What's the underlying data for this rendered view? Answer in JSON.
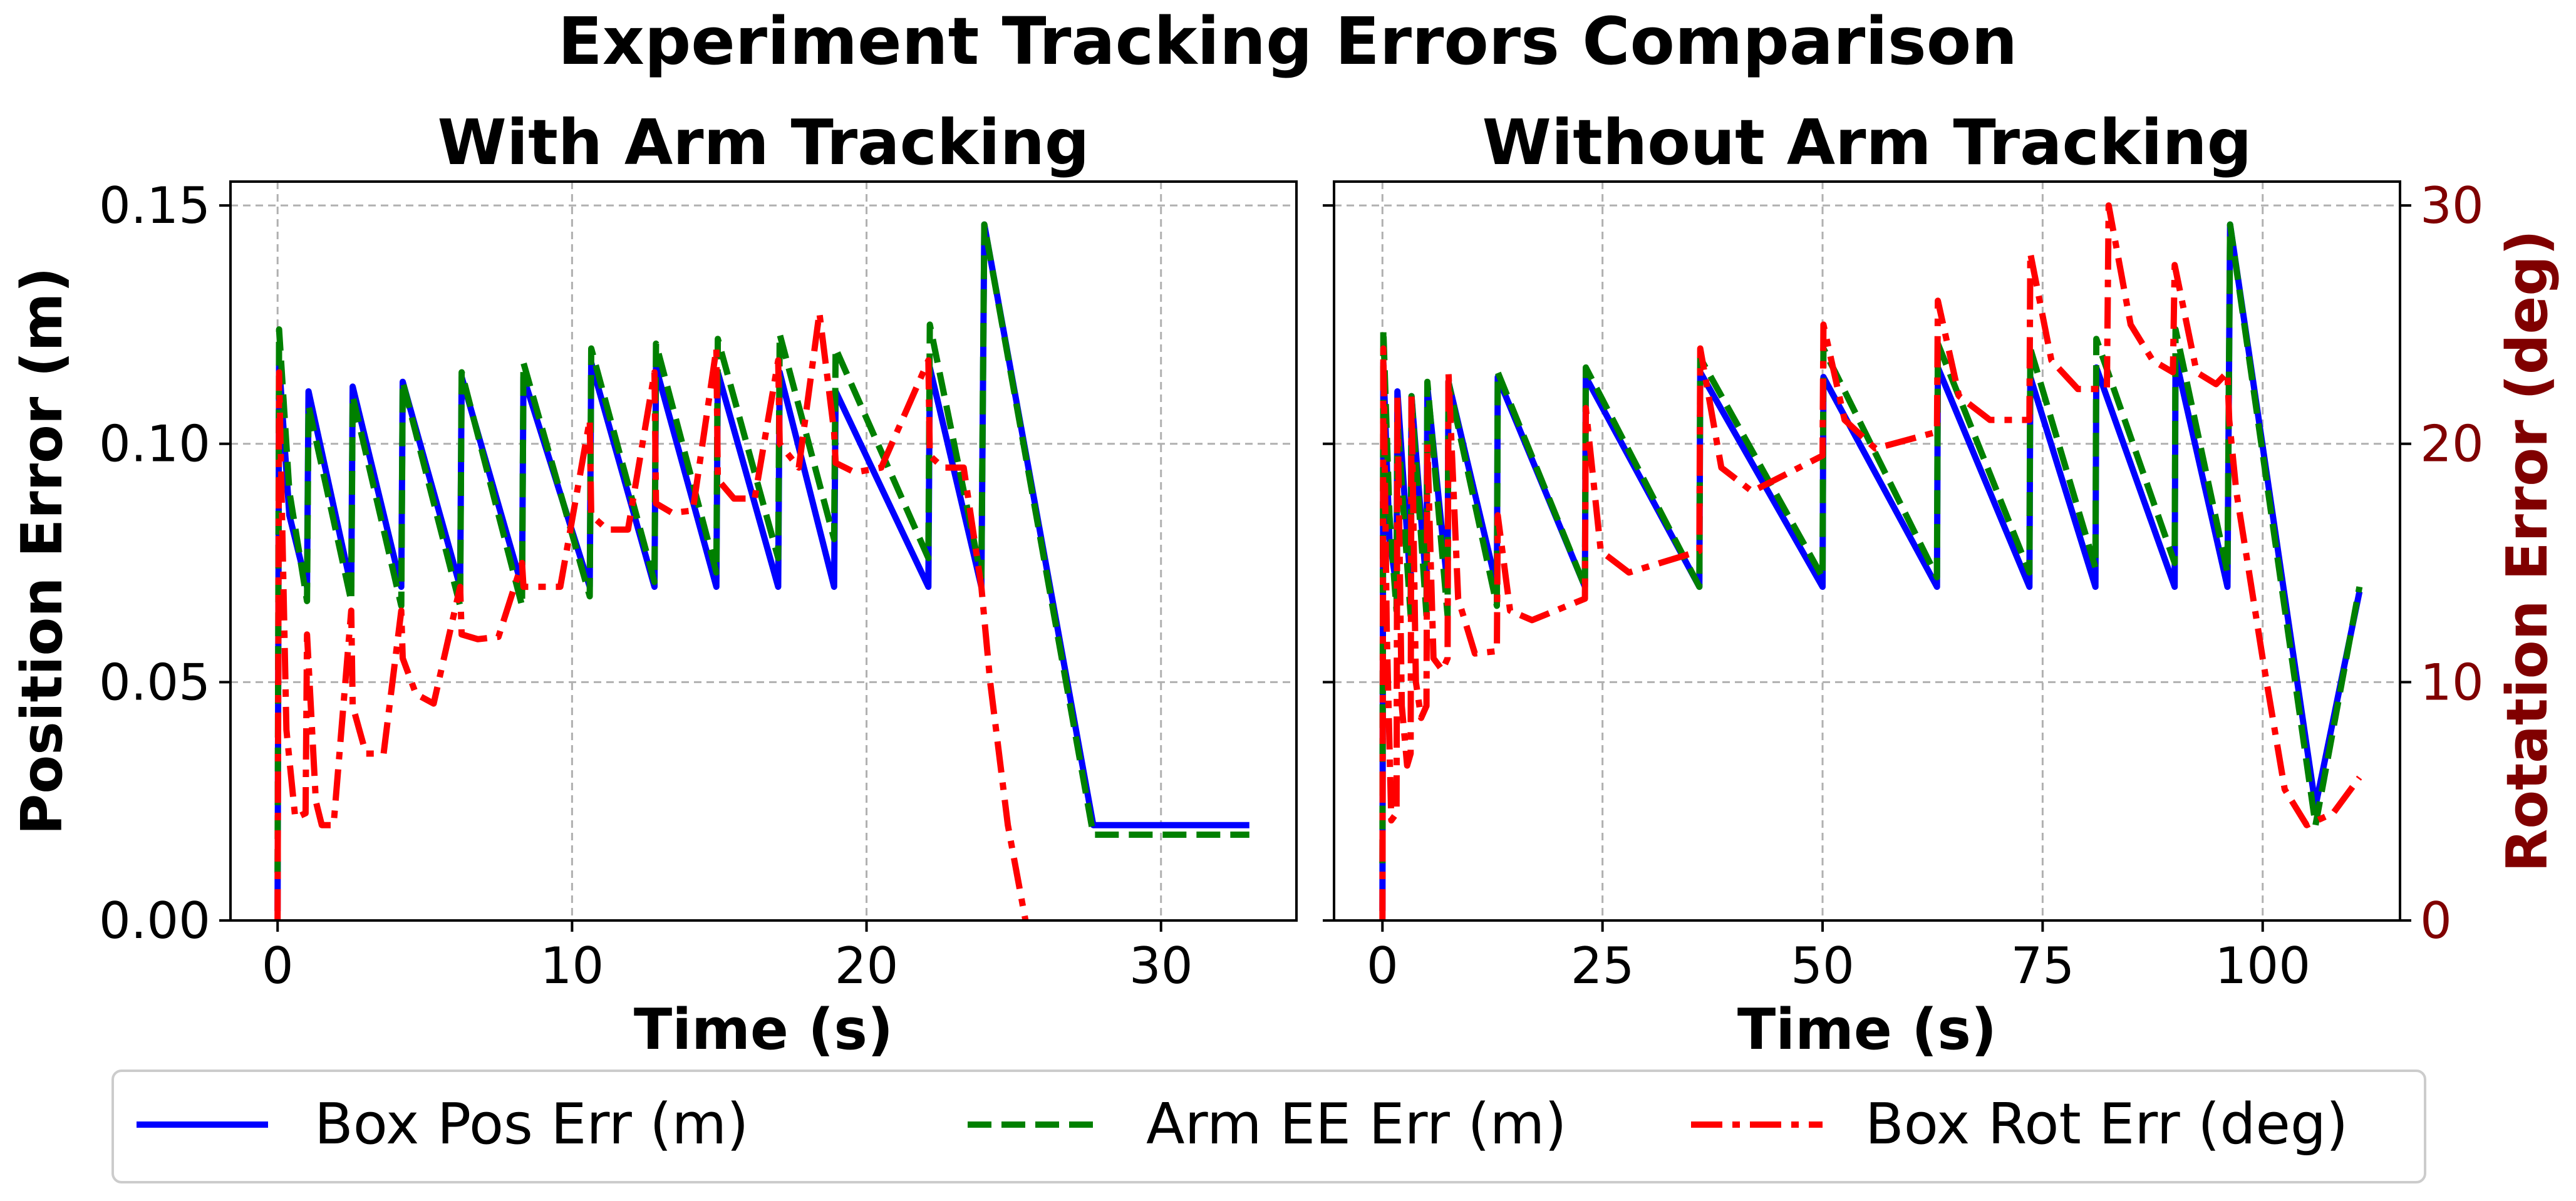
{
  "suptitle": "Experiment Tracking Errors Comparison",
  "colors": {
    "pos": "#0000ff",
    "ee": "#008000",
    "rot": "#ff0000",
    "rot_axis": "#800000",
    "grid": "#b0b0b0",
    "legend_border": "#cccccc"
  },
  "legend": [
    {
      "label": "Box Pos Err (m)",
      "color": "#0000ff",
      "style": "solid"
    },
    {
      "label": "Arm EE Err (m)",
      "color": "#008000",
      "style": "dashed"
    },
    {
      "label": "Box Rot Err (deg)",
      "color": "#ff0000",
      "style": "dashdot"
    }
  ],
  "chart_data": [
    {
      "type": "line",
      "title": "With Arm Tracking",
      "xlabel": "Time (s)",
      "ylabel": "Position Error (m)",
      "xlim": [
        -1.6,
        34.6
      ],
      "ylim": [
        0,
        0.155
      ],
      "xticks": [
        0,
        10,
        20,
        30
      ],
      "xtick_labels": [
        "0",
        "10",
        "20",
        "30"
      ],
      "yticks": [
        0,
        0.05,
        0.1,
        0.15
      ],
      "ytick_labels": [
        "0.00",
        "0.05",
        "0.10",
        "0.15"
      ],
      "y2lim": [
        0,
        31
      ],
      "grid": true,
      "series": [
        {
          "name": "Box Pos Err (m)",
          "axis": "left",
          "x": [
            0,
            0.05,
            0.4,
            1.0,
            1.05,
            2.5,
            2.55,
            4.2,
            4.25,
            6.2,
            6.25,
            8.3,
            8.35,
            10.6,
            10.65,
            12.8,
            12.85,
            14.9,
            14.95,
            17.0,
            17.05,
            18.9,
            18.95,
            22.1,
            22.15,
            23.9,
            24.0,
            27.7,
            33.0
          ],
          "y": [
            0.002,
            0.117,
            0.085,
            0.07,
            0.111,
            0.07,
            0.112,
            0.07,
            0.113,
            0.07,
            0.114,
            0.07,
            0.114,
            0.07,
            0.117,
            0.07,
            0.116,
            0.07,
            0.115,
            0.07,
            0.115,
            0.07,
            0.111,
            0.07,
            0.116,
            0.07,
            0.146,
            0.02,
            0.02
          ]
        },
        {
          "name": "Arm EE Err (m)",
          "axis": "left",
          "x": [
            0,
            0.05,
            0.4,
            1.0,
            1.05,
            2.5,
            2.55,
            4.2,
            4.25,
            6.2,
            6.25,
            8.3,
            8.35,
            10.6,
            10.65,
            12.8,
            12.85,
            14.9,
            14.95,
            17.0,
            17.05,
            18.9,
            18.95,
            22.1,
            22.15,
            23.9,
            24.0,
            27.7,
            33.0
          ],
          "y": [
            0.01,
            0.124,
            0.09,
            0.067,
            0.108,
            0.067,
            0.11,
            0.066,
            0.113,
            0.066,
            0.115,
            0.066,
            0.117,
            0.068,
            0.12,
            0.071,
            0.121,
            0.073,
            0.122,
            0.076,
            0.123,
            0.08,
            0.12,
            0.076,
            0.125,
            0.072,
            0.146,
            0.018,
            0.018
          ]
        },
        {
          "name": "Box Rot Err (deg)",
          "axis": "right",
          "x": [
            0,
            0.05,
            0.3,
            0.6,
            0.95,
            1.0,
            1.3,
            1.5,
            1.9,
            2.5,
            2.55,
            3.0,
            3.6,
            4.2,
            4.25,
            4.7,
            5.3,
            6.2,
            6.25,
            6.8,
            7.5,
            8.3,
            8.35,
            8.9,
            9.6,
            10.6,
            10.65,
            11.2,
            11.9,
            12.8,
            12.85,
            13.4,
            14.1,
            14.9,
            14.95,
            15.5,
            16.2,
            17.0,
            17.05,
            17.7,
            18.4,
            18.9,
            18.95,
            19.6,
            20.5,
            22.1,
            22.15,
            22.6,
            23.3,
            23.9,
            24.2,
            24.8,
            25.4
          ],
          "y": [
            0,
            23,
            8,
            4.3,
            4.5,
            12,
            5,
            4,
            4,
            13,
            9,
            7,
            7,
            13,
            11,
            9.5,
            9.1,
            14,
            12,
            11.8,
            11.9,
            15,
            14,
            14,
            14,
            21,
            17,
            16.4,
            16.4,
            23,
            17.5,
            17.1,
            17.2,
            24,
            18.5,
            17.7,
            17.7,
            23.5,
            20,
            19,
            25.5,
            20.5,
            19.2,
            18.8,
            19,
            23.5,
            19.5,
            19,
            19,
            14,
            10,
            4,
            0
          ]
        }
      ]
    },
    {
      "type": "line",
      "title": "Without Arm Tracking",
      "xlabel": "Time (s)",
      "ylabel": "Rotation Error (deg)",
      "xlim": [
        -5.5,
        115.6
      ],
      "ylim": [
        0,
        0.155
      ],
      "xticks": [
        0,
        25,
        50,
        75,
        100
      ],
      "xtick_labels": [
        "0",
        "25",
        "50",
        "75",
        "100"
      ],
      "y2lim": [
        0,
        31
      ],
      "y2ticks": [
        0,
        10,
        20,
        30
      ],
      "y2tick_labels": [
        "0",
        "10",
        "20",
        "30"
      ],
      "grid": true,
      "series": [
        {
          "name": "Box Pos Err (m)",
          "axis": "left",
          "x": [
            0,
            0.1,
            0.8,
            1.6,
            1.7,
            3.2,
            3.3,
            5.0,
            5.1,
            7.4,
            7.5,
            13.0,
            13.1,
            23.0,
            23.1,
            36.0,
            36.1,
            50.0,
            50.1,
            63.0,
            63.1,
            73.5,
            73.6,
            81.0,
            81.1,
            90.0,
            90.1,
            96.0,
            96.3,
            106.0,
            111.0
          ],
          "y": [
            0.002,
            0.117,
            0.08,
            0.07,
            0.111,
            0.07,
            0.11,
            0.07,
            0.112,
            0.07,
            0.113,
            0.07,
            0.114,
            0.07,
            0.114,
            0.07,
            0.115,
            0.07,
            0.114,
            0.07,
            0.116,
            0.07,
            0.114,
            0.07,
            0.116,
            0.07,
            0.118,
            0.07,
            0.146,
            0.024,
            0.069
          ]
        },
        {
          "name": "Arm EE Err (m)",
          "axis": "left",
          "x": [
            0,
            0.1,
            0.8,
            1.6,
            1.7,
            3.2,
            3.3,
            5.0,
            5.1,
            7.4,
            7.5,
            13.0,
            13.1,
            23.0,
            23.1,
            36.0,
            36.1,
            50.0,
            50.1,
            63.0,
            63.1,
            73.5,
            73.6,
            81.0,
            81.1,
            90.0,
            90.1,
            96.0,
            96.3,
            106.0,
            111.0
          ],
          "y": [
            0.012,
            0.124,
            0.085,
            0.065,
            0.105,
            0.064,
            0.11,
            0.064,
            0.113,
            0.064,
            0.113,
            0.066,
            0.115,
            0.07,
            0.116,
            0.07,
            0.118,
            0.072,
            0.12,
            0.072,
            0.121,
            0.073,
            0.12,
            0.074,
            0.122,
            0.075,
            0.124,
            0.073,
            0.146,
            0.02,
            0.07
          ]
        },
        {
          "name": "Box Rot Err (deg)",
          "axis": "right",
          "x": [
            0,
            0.1,
            0.5,
            1.0,
            1.6,
            1.7,
            2.2,
            2.8,
            3.2,
            3.3,
            3.8,
            4.4,
            5.0,
            5.1,
            5.8,
            6.8,
            7.4,
            7.5,
            8.6,
            10.5,
            13.0,
            13.1,
            14.5,
            17.0,
            23.0,
            23.1,
            24.8,
            28.0,
            36.0,
            36.1,
            38.5,
            42.0,
            50.0,
            50.1,
            52.5,
            56.0,
            63.0,
            63.1,
            65.5,
            69.0,
            73.5,
            73.6,
            76.0,
            79.0,
            82.3,
            82.5,
            85.0,
            87.5,
            89.8,
            90.0,
            92.5,
            94.7,
            96.0,
            96.2,
            97.0,
            100.0,
            102.5,
            105.0,
            108.0,
            111.0
          ],
          "y": [
            0,
            24,
            12,
            4.2,
            4.5,
            22,
            9,
            6.5,
            7,
            22,
            10,
            8.5,
            9,
            20,
            11,
            10.5,
            11,
            23,
            13.5,
            11.2,
            11.3,
            17,
            13,
            12.6,
            13.5,
            21.5,
            15.5,
            14.6,
            15.5,
            24,
            19,
            18,
            19.5,
            25,
            21,
            19.8,
            20.5,
            26,
            22,
            21,
            21,
            28,
            23.5,
            22.3,
            22.3,
            30,
            25,
            23.5,
            23,
            27.5,
            23,
            22.5,
            23,
            21,
            18,
            11,
            5.5,
            4,
            4.5,
            6
          ]
        }
      ]
    }
  ]
}
